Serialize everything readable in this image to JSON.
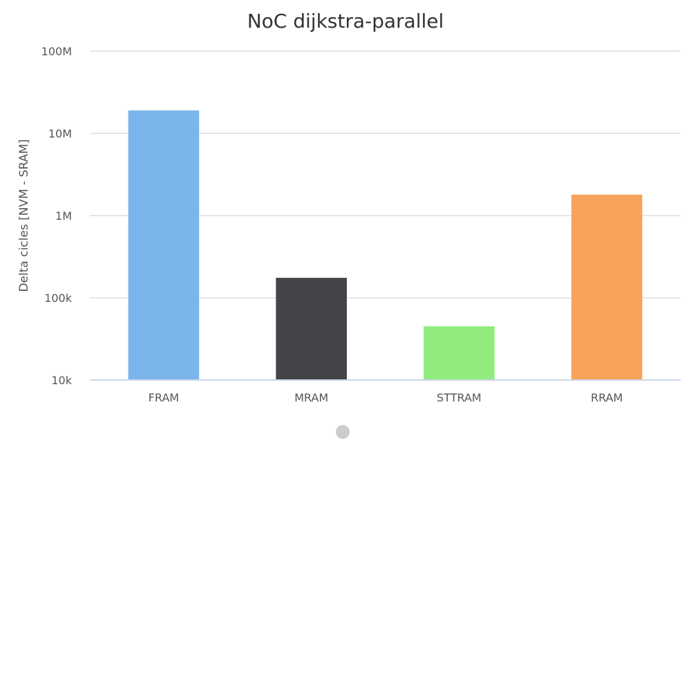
{
  "chart_data": {
    "type": "bar",
    "title": "NoC dijkstra-parallel",
    "xlabel": "",
    "ylabel": "Delta cicles [NVM - SRAM]",
    "yscale": "log",
    "ylim": [
      10000,
      100000000
    ],
    "yticks": [
      {
        "value": 10000,
        "label": "10k"
      },
      {
        "value": 100000,
        "label": "100k"
      },
      {
        "value": 1000000,
        "label": "1M"
      },
      {
        "value": 10000000,
        "label": "10M"
      },
      {
        "value": 100000000,
        "label": "100M"
      }
    ],
    "grid": true,
    "legend": "none",
    "categories": [
      "FRAM",
      "MRAM",
      "STTRAM",
      "RRAM"
    ],
    "values": [
      19000000,
      175000,
      45000,
      1800000
    ],
    "colors": [
      "#7cb5ec",
      "#434348",
      "#90ed7d",
      "#f7a35c"
    ]
  },
  "pagination": {
    "dot_color": "#cccccc"
  }
}
